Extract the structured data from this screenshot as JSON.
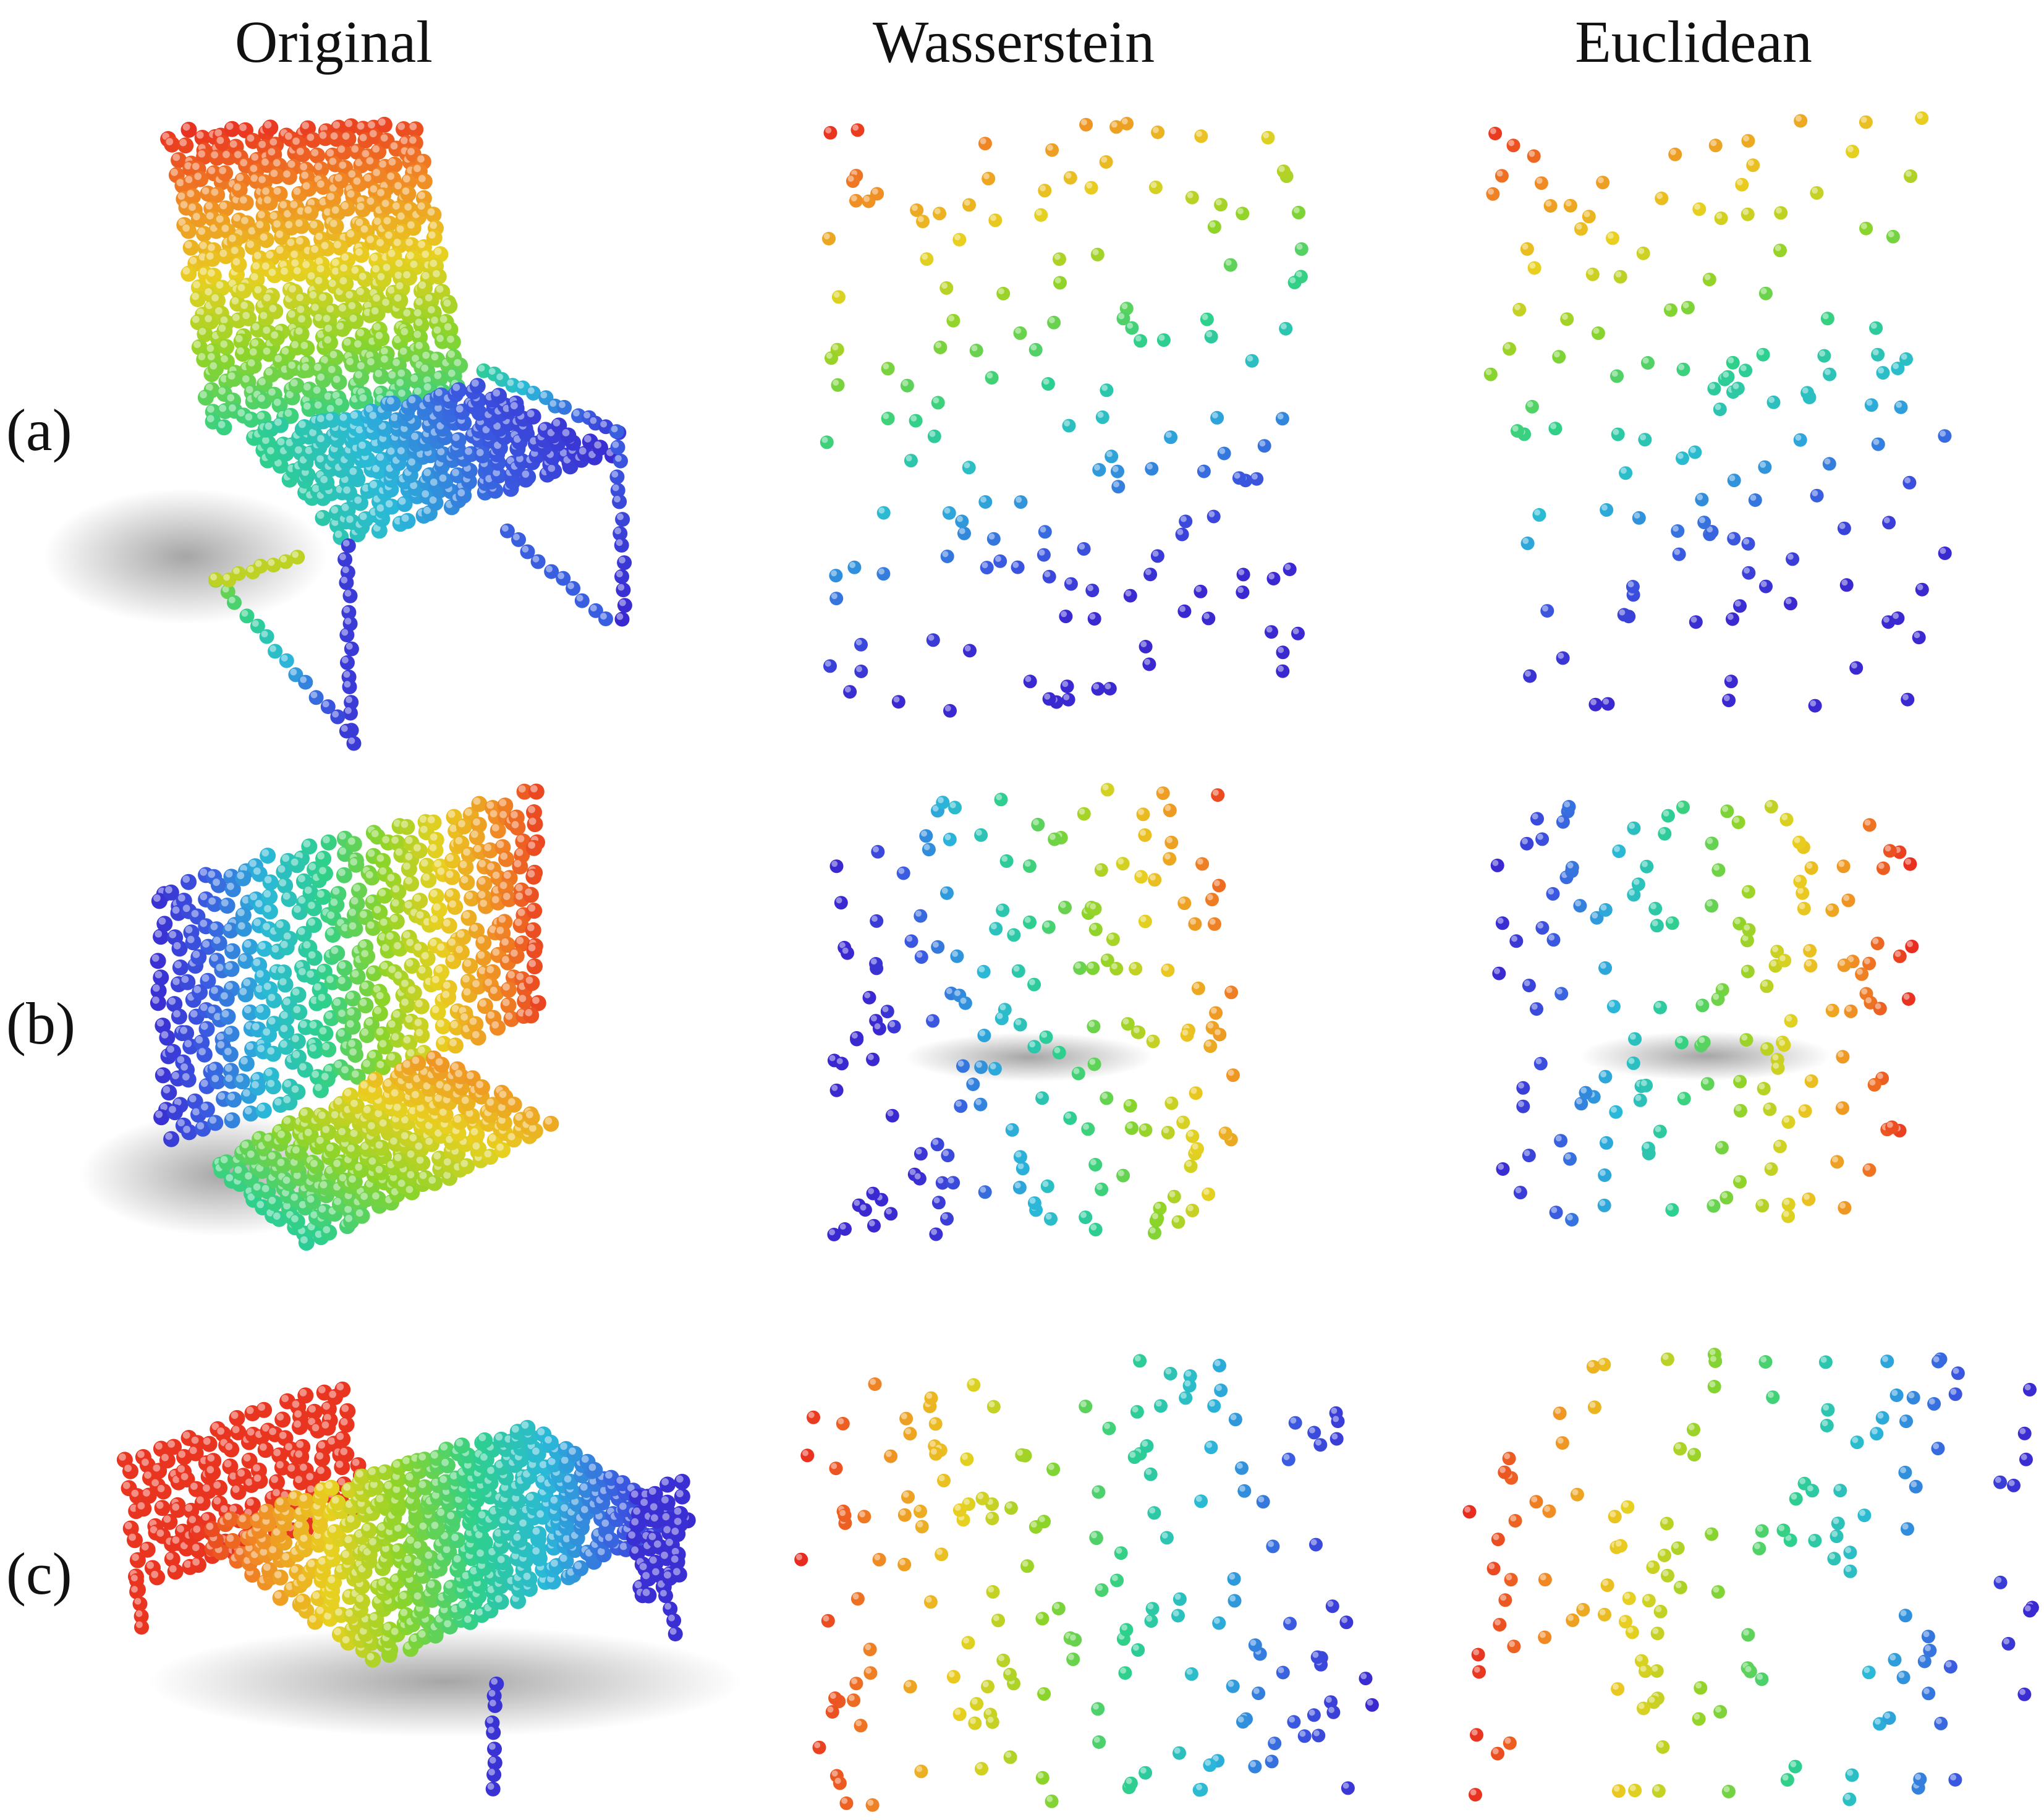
{
  "figure": {
    "columns": [
      "Original",
      "Wasserstein",
      "Euclidean"
    ],
    "rows": [
      "(a)",
      "(b)",
      "(c)"
    ],
    "rows_content": [
      "chair",
      "chair",
      "bed"
    ],
    "colormap": {
      "description": "point color encodes position along one axis",
      "stops": [
        "#e8261f",
        "#f08a24",
        "#e8d020",
        "#8bd42a",
        "#2ed08c",
        "#2ab8d8",
        "#3a5ae0",
        "#3a28d0"
      ]
    }
  }
}
